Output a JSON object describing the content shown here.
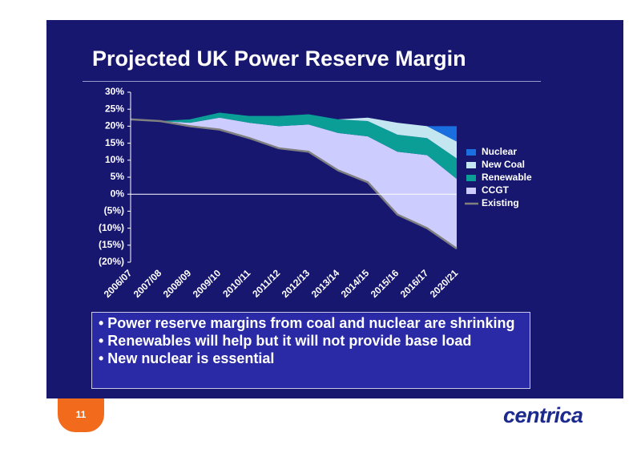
{
  "slide": {
    "title": "Projected UK Power Reserve Margin",
    "bullets": [
      "• Power reserve margins from coal and nuclear are shrinking",
      "• Renewables will help but it will not provide base load",
      "• New nuclear is essential"
    ],
    "page_number": "11",
    "logo": "centrica"
  },
  "chart_data": {
    "type": "area",
    "stacked": true,
    "categories": [
      "2006/07",
      "2007/08",
      "2008/09",
      "2009/10",
      "2010/11",
      "2011/12",
      "2012/13",
      "2013/14",
      "2014/15",
      "2015/16",
      "2016/17",
      "2020/21"
    ],
    "series": [
      {
        "name": "Nuclear",
        "color": "#1a6fe0",
        "values": [
          0,
          0,
          0,
          0,
          0,
          0,
          0,
          0,
          0,
          0,
          0,
          4.5
        ]
      },
      {
        "name": "New Coal",
        "color": "#c4e6f0",
        "values": [
          0,
          0,
          0,
          0,
          0,
          0,
          0,
          0,
          1,
          3.5,
          3.5,
          5
        ]
      },
      {
        "name": "Renewable",
        "color": "#0a9e96",
        "values": [
          0,
          0,
          1,
          1.5,
          2,
          3,
          3,
          4,
          4.5,
          5,
          5,
          6
        ]
      },
      {
        "name": "CCGT",
        "color": "#ccccff",
        "values": [
          0,
          0,
          1,
          3.5,
          4.5,
          6.5,
          8,
          11,
          13.5,
          18.5,
          21.5,
          20.5
        ]
      },
      {
        "name": "Existing",
        "color": "#808080",
        "type": "line",
        "values": [
          22,
          21.5,
          20,
          19,
          16.5,
          13.5,
          12.5,
          7,
          3.5,
          -6,
          -10,
          -16
        ]
      }
    ],
    "ylim": [
      -20,
      30
    ],
    "yticks": [
      {
        "value": -20,
        "label": "(20%)"
      },
      {
        "value": -15,
        "label": "(15%)"
      },
      {
        "value": -10,
        "label": "(10%)"
      },
      {
        "value": -5,
        "label": "(5%)"
      },
      {
        "value": 0,
        "label": "0%"
      },
      {
        "value": 5,
        "label": "5%"
      },
      {
        "value": 10,
        "label": "10%"
      },
      {
        "value": 15,
        "label": "15%"
      },
      {
        "value": 20,
        "label": "20%"
      },
      {
        "value": 25,
        "label": "25%"
      },
      {
        "value": 30,
        "label": "30%"
      }
    ],
    "legend": "right"
  }
}
